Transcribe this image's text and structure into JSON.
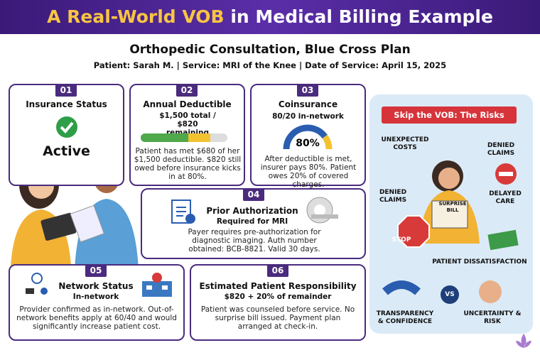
{
  "header": {
    "title_highlight": "A Real-World VOB",
    "title_rest": "in Medical Billing Example",
    "subtitle": "Orthopedic Consultation, Blue Cross Plan",
    "details": "Patient: Sarah M. | Service: MRI of the Knee | Date of Service: April 15, 2025"
  },
  "cards": [
    {
      "number": "01",
      "title": "Insurance Status",
      "status": "Active"
    },
    {
      "number": "02",
      "title": "Annual Deductible",
      "subtitle": "$1,500 total / $820 remaining",
      "body": "Patient has met $680 of her $1,500 deductible. $820 still owed before insurance kicks in at 80%."
    },
    {
      "number": "03",
      "title": "Coinsurance",
      "subtitle": "80/20 in-network",
      "gauge": {
        "value": 80,
        "label": "80%"
      },
      "body": "After deductible is met, insurer pays 80%. Patient owes 20% of covered charges."
    },
    {
      "number": "04",
      "title": "Prior Authorization",
      "subtitle": "Required for MRI",
      "body": "Payer requires pre-authorization for diagnostic imaging. Auth number obtained: BCB-8821. Valid 30 days."
    },
    {
      "number": "05",
      "title": "Network Status",
      "subtitle": "In-network",
      "body": "Provider confirmed as in-network. Out-of-network benefits apply at 60/40 and would significantly increase patient cost."
    },
    {
      "number": "06",
      "title": "Estimated Patient Responsibility",
      "subtitle": "$820 + 20% of remainder",
      "body": "Patient was counseled before service. No surprise bill issued. Payment plan arranged at check-in."
    }
  ],
  "risks": {
    "title": "Skip the VOB: The Risks",
    "items": [
      "UNEXPECTED COSTS",
      "DENIED CLAIMS",
      "DENIED CLAIMS",
      "DELAYED CARE",
      "SURPRISE BILL",
      "STOP",
      "PATIENT DISSATISFACTION",
      "TRANSPARENCY & CONFIDENCE",
      "VS",
      "UNCERTAINTY & RISK"
    ]
  }
}
